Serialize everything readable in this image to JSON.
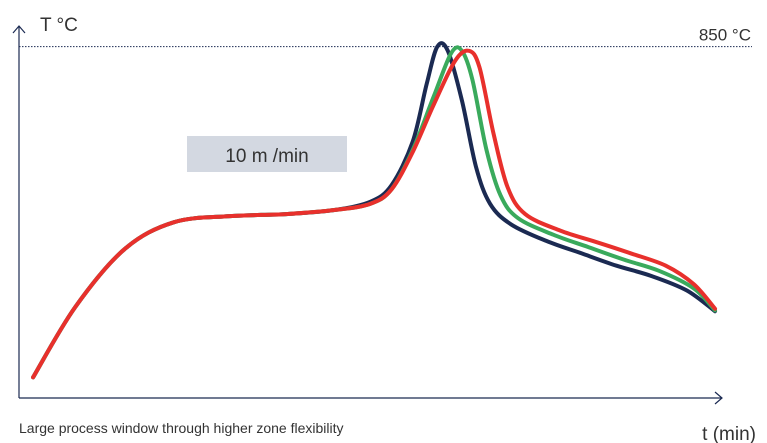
{
  "chart_data": {
    "type": "line",
    "ylabel": "T °C",
    "xlabel": "t (min)",
    "reference_line": {
      "label": "850 °C",
      "value": 850
    },
    "annotation": "10 m /min",
    "ylim": [
      0,
      900
    ],
    "xlim": [
      0,
      100
    ],
    "series": [
      {
        "color": "#1b2a52",
        "points": [
          [
            2,
            50
          ],
          [
            8,
            220
          ],
          [
            15,
            360
          ],
          [
            22,
            425
          ],
          [
            30,
            440
          ],
          [
            38,
            445
          ],
          [
            45,
            455
          ],
          [
            50,
            475
          ],
          [
            53,
            515
          ],
          [
            56,
            620
          ],
          [
            58,
            760
          ],
          [
            59.5,
            850
          ],
          [
            61,
            840
          ],
          [
            63,
            720
          ],
          [
            65,
            560
          ],
          [
            67,
            470
          ],
          [
            70,
            420
          ],
          [
            75,
            380
          ],
          [
            80,
            350
          ],
          [
            85,
            320
          ],
          [
            90,
            295
          ],
          [
            95,
            260
          ],
          [
            99,
            210
          ]
        ]
      },
      {
        "color": "#3aaa5c",
        "points": [
          [
            2,
            50
          ],
          [
            8,
            220
          ],
          [
            15,
            360
          ],
          [
            22,
            425
          ],
          [
            30,
            440
          ],
          [
            38,
            445
          ],
          [
            45,
            455
          ],
          [
            50,
            470
          ],
          [
            53,
            505
          ],
          [
            56,
            600
          ],
          [
            59,
            730
          ],
          [
            61.5,
            835
          ],
          [
            63,
            840
          ],
          [
            64.5,
            770
          ],
          [
            66.5,
            600
          ],
          [
            68.5,
            490
          ],
          [
            71,
            435
          ],
          [
            76,
            395
          ],
          [
            81,
            365
          ],
          [
            86,
            335
          ],
          [
            91,
            308
          ],
          [
            96,
            265
          ],
          [
            99,
            212
          ]
        ]
      },
      {
        "color": "#e8302c",
        "points": [
          [
            2,
            50
          ],
          [
            8,
            220
          ],
          [
            15,
            360
          ],
          [
            22,
            425
          ],
          [
            30,
            440
          ],
          [
            38,
            445
          ],
          [
            45,
            455
          ],
          [
            50,
            470
          ],
          [
            53,
            505
          ],
          [
            56,
            595
          ],
          [
            59,
            710
          ],
          [
            62,
            815
          ],
          [
            64,
            840
          ],
          [
            65.5,
            800
          ],
          [
            67.5,
            640
          ],
          [
            69.5,
            510
          ],
          [
            72,
            445
          ],
          [
            77,
            405
          ],
          [
            82,
            378
          ],
          [
            87,
            350
          ],
          [
            92,
            320
          ],
          [
            96,
            275
          ],
          [
            99,
            216
          ]
        ]
      }
    ]
  },
  "caption": "Large process window through higher zone flexibility"
}
